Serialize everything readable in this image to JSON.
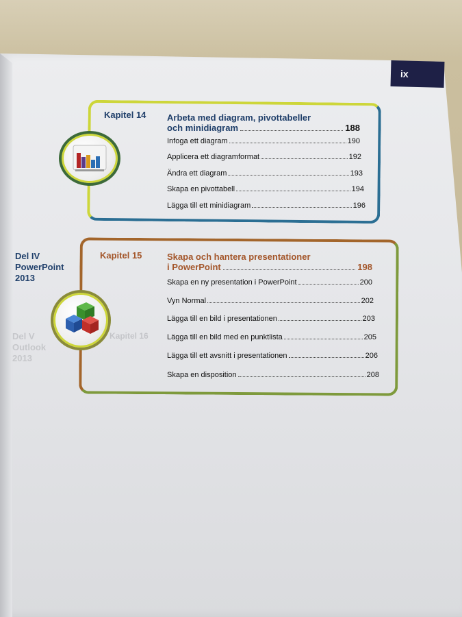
{
  "page": {
    "roman_number": "ix"
  },
  "part": {
    "line1": "Del IV",
    "line2": "PowerPoint",
    "line3": "2013"
  },
  "faded_part": {
    "line1": "Del V",
    "line2": "Outlook",
    "line3": "2013",
    "chapter": "Kapitel 16"
  },
  "chapter14": {
    "label": "Kapitel 14",
    "title_line1": "Arbeta med diagram, pivottabeller",
    "title_line2": "och minidiagram",
    "title_page": "188",
    "entries": [
      {
        "text": "Infoga ett diagram",
        "page": "190"
      },
      {
        "text": "Applicera ett diagramformat",
        "page": "192"
      },
      {
        "text": "Ändra ett diagram",
        "page": "193"
      },
      {
        "text": "Skapa en pivottabell",
        "page": "194"
      },
      {
        "text": "Lägga till ett minidiagram",
        "page": "196"
      }
    ]
  },
  "chapter15": {
    "label": "Kapitel 15",
    "title_line1": "Skapa och hantera presentationer",
    "title_line2": "i PowerPoint",
    "title_page": "198",
    "entries": [
      {
        "text": "Skapa en ny presentation i PowerPoint",
        "page": "200"
      },
      {
        "text": "Vyn Normal",
        "page": "202"
      },
      {
        "text": "Lägga till en bild i presentationen",
        "page": "203"
      },
      {
        "text": "Lägga till en bild med en punktlista",
        "page": "205"
      },
      {
        "text": "Lägga till ett avsnitt i presentationen",
        "page": "206"
      },
      {
        "text": "Skapa en disposition",
        "page": "208"
      }
    ]
  },
  "colors": {
    "chapter14_accent": "#1f3f6a",
    "chapter15_accent": "#a3562a",
    "tab_background": "#1e2046"
  },
  "icons": {
    "chapter14": "bar-chart-icon",
    "chapter15": "cubes-icon"
  }
}
